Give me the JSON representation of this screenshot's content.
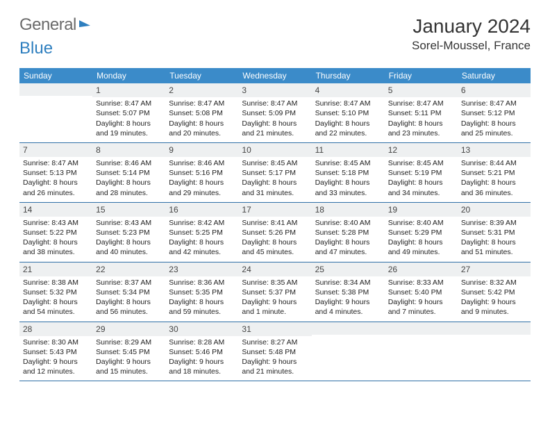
{
  "logo": {
    "part1": "General",
    "part2": "Blue"
  },
  "title": "January 2024",
  "location": "Sorel-Moussel, France",
  "colors": {
    "header_bg": "#3b8bc9",
    "header_text": "#ffffff",
    "daynum_bg": "#eef0f1",
    "border": "#2f6fa6",
    "logo_gray": "#6b6b6b",
    "logo_blue": "#2e7fbf"
  },
  "weekdays": [
    "Sunday",
    "Monday",
    "Tuesday",
    "Wednesday",
    "Thursday",
    "Friday",
    "Saturday"
  ],
  "weeks": [
    [
      {
        "num": "",
        "lines": []
      },
      {
        "num": "1",
        "lines": [
          "Sunrise: 8:47 AM",
          "Sunset: 5:07 PM",
          "Daylight: 8 hours",
          "and 19 minutes."
        ]
      },
      {
        "num": "2",
        "lines": [
          "Sunrise: 8:47 AM",
          "Sunset: 5:08 PM",
          "Daylight: 8 hours",
          "and 20 minutes."
        ]
      },
      {
        "num": "3",
        "lines": [
          "Sunrise: 8:47 AM",
          "Sunset: 5:09 PM",
          "Daylight: 8 hours",
          "and 21 minutes."
        ]
      },
      {
        "num": "4",
        "lines": [
          "Sunrise: 8:47 AM",
          "Sunset: 5:10 PM",
          "Daylight: 8 hours",
          "and 22 minutes."
        ]
      },
      {
        "num": "5",
        "lines": [
          "Sunrise: 8:47 AM",
          "Sunset: 5:11 PM",
          "Daylight: 8 hours",
          "and 23 minutes."
        ]
      },
      {
        "num": "6",
        "lines": [
          "Sunrise: 8:47 AM",
          "Sunset: 5:12 PM",
          "Daylight: 8 hours",
          "and 25 minutes."
        ]
      }
    ],
    [
      {
        "num": "7",
        "lines": [
          "Sunrise: 8:47 AM",
          "Sunset: 5:13 PM",
          "Daylight: 8 hours",
          "and 26 minutes."
        ]
      },
      {
        "num": "8",
        "lines": [
          "Sunrise: 8:46 AM",
          "Sunset: 5:14 PM",
          "Daylight: 8 hours",
          "and 28 minutes."
        ]
      },
      {
        "num": "9",
        "lines": [
          "Sunrise: 8:46 AM",
          "Sunset: 5:16 PM",
          "Daylight: 8 hours",
          "and 29 minutes."
        ]
      },
      {
        "num": "10",
        "lines": [
          "Sunrise: 8:45 AM",
          "Sunset: 5:17 PM",
          "Daylight: 8 hours",
          "and 31 minutes."
        ]
      },
      {
        "num": "11",
        "lines": [
          "Sunrise: 8:45 AM",
          "Sunset: 5:18 PM",
          "Daylight: 8 hours",
          "and 33 minutes."
        ]
      },
      {
        "num": "12",
        "lines": [
          "Sunrise: 8:45 AM",
          "Sunset: 5:19 PM",
          "Daylight: 8 hours",
          "and 34 minutes."
        ]
      },
      {
        "num": "13",
        "lines": [
          "Sunrise: 8:44 AM",
          "Sunset: 5:21 PM",
          "Daylight: 8 hours",
          "and 36 minutes."
        ]
      }
    ],
    [
      {
        "num": "14",
        "lines": [
          "Sunrise: 8:43 AM",
          "Sunset: 5:22 PM",
          "Daylight: 8 hours",
          "and 38 minutes."
        ]
      },
      {
        "num": "15",
        "lines": [
          "Sunrise: 8:43 AM",
          "Sunset: 5:23 PM",
          "Daylight: 8 hours",
          "and 40 minutes."
        ]
      },
      {
        "num": "16",
        "lines": [
          "Sunrise: 8:42 AM",
          "Sunset: 5:25 PM",
          "Daylight: 8 hours",
          "and 42 minutes."
        ]
      },
      {
        "num": "17",
        "lines": [
          "Sunrise: 8:41 AM",
          "Sunset: 5:26 PM",
          "Daylight: 8 hours",
          "and 45 minutes."
        ]
      },
      {
        "num": "18",
        "lines": [
          "Sunrise: 8:40 AM",
          "Sunset: 5:28 PM",
          "Daylight: 8 hours",
          "and 47 minutes."
        ]
      },
      {
        "num": "19",
        "lines": [
          "Sunrise: 8:40 AM",
          "Sunset: 5:29 PM",
          "Daylight: 8 hours",
          "and 49 minutes."
        ]
      },
      {
        "num": "20",
        "lines": [
          "Sunrise: 8:39 AM",
          "Sunset: 5:31 PM",
          "Daylight: 8 hours",
          "and 51 minutes."
        ]
      }
    ],
    [
      {
        "num": "21",
        "lines": [
          "Sunrise: 8:38 AM",
          "Sunset: 5:32 PM",
          "Daylight: 8 hours",
          "and 54 minutes."
        ]
      },
      {
        "num": "22",
        "lines": [
          "Sunrise: 8:37 AM",
          "Sunset: 5:34 PM",
          "Daylight: 8 hours",
          "and 56 minutes."
        ]
      },
      {
        "num": "23",
        "lines": [
          "Sunrise: 8:36 AM",
          "Sunset: 5:35 PM",
          "Daylight: 8 hours",
          "and 59 minutes."
        ]
      },
      {
        "num": "24",
        "lines": [
          "Sunrise: 8:35 AM",
          "Sunset: 5:37 PM",
          "Daylight: 9 hours",
          "and 1 minute."
        ]
      },
      {
        "num": "25",
        "lines": [
          "Sunrise: 8:34 AM",
          "Sunset: 5:38 PM",
          "Daylight: 9 hours",
          "and 4 minutes."
        ]
      },
      {
        "num": "26",
        "lines": [
          "Sunrise: 8:33 AM",
          "Sunset: 5:40 PM",
          "Daylight: 9 hours",
          "and 7 minutes."
        ]
      },
      {
        "num": "27",
        "lines": [
          "Sunrise: 8:32 AM",
          "Sunset: 5:42 PM",
          "Daylight: 9 hours",
          "and 9 minutes."
        ]
      }
    ],
    [
      {
        "num": "28",
        "lines": [
          "Sunrise: 8:30 AM",
          "Sunset: 5:43 PM",
          "Daylight: 9 hours",
          "and 12 minutes."
        ]
      },
      {
        "num": "29",
        "lines": [
          "Sunrise: 8:29 AM",
          "Sunset: 5:45 PM",
          "Daylight: 9 hours",
          "and 15 minutes."
        ]
      },
      {
        "num": "30",
        "lines": [
          "Sunrise: 8:28 AM",
          "Sunset: 5:46 PM",
          "Daylight: 9 hours",
          "and 18 minutes."
        ]
      },
      {
        "num": "31",
        "lines": [
          "Sunrise: 8:27 AM",
          "Sunset: 5:48 PM",
          "Daylight: 9 hours",
          "and 21 minutes."
        ]
      },
      {
        "num": "",
        "lines": []
      },
      {
        "num": "",
        "lines": []
      },
      {
        "num": "",
        "lines": []
      }
    ]
  ]
}
